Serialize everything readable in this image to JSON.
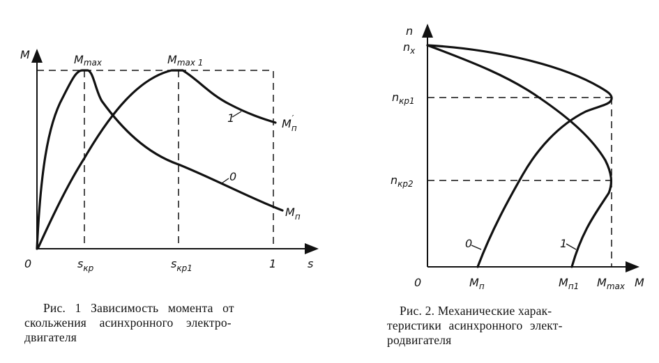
{
  "figure1": {
    "y_axis_label": "M",
    "x_axis_label": "s",
    "origin_label": "0",
    "x_ticks": [
      "s",
      "кр",
      "s",
      "кр1",
      "1"
    ],
    "peak_labels": {
      "mmax": "M",
      "mmax_sub": "max",
      "mmax1": "M",
      "mmax1_sub": "max 1"
    },
    "curve_labels": {
      "curve0": "0",
      "curve1": "1"
    },
    "end_labels": {
      "mn": "M",
      "mn_sub": "п",
      "mn_prime": "M",
      "mn_prime_sub": "п",
      "prime": "′"
    },
    "caption": [
      "Рис. 1 Зависимость момента от",
      "скольжения асинхронного электро-",
      "двигателя"
    ]
  },
  "figure2": {
    "y_axis_label": "n",
    "x_axis_label": "M",
    "origin_label": "0",
    "y_ticks": {
      "nx": "n",
      "nx_sub": "x",
      "nkp1": "n",
      "nkp1_sub": "кр1",
      "nkp2": "n",
      "nkp2_sub": "кр2"
    },
    "x_ticks": {
      "mn": "M",
      "mn_sub": "п",
      "mn1": "M",
      "mn1_sub": "п1",
      "mmax": "M",
      "mmax_sub": "max"
    },
    "curve_labels": {
      "curve0": "0",
      "curve1": "1"
    },
    "caption": [
      "Рис. 2. Механические харак-",
      "теристики асинхронного элект-",
      "родвигателя"
    ]
  }
}
